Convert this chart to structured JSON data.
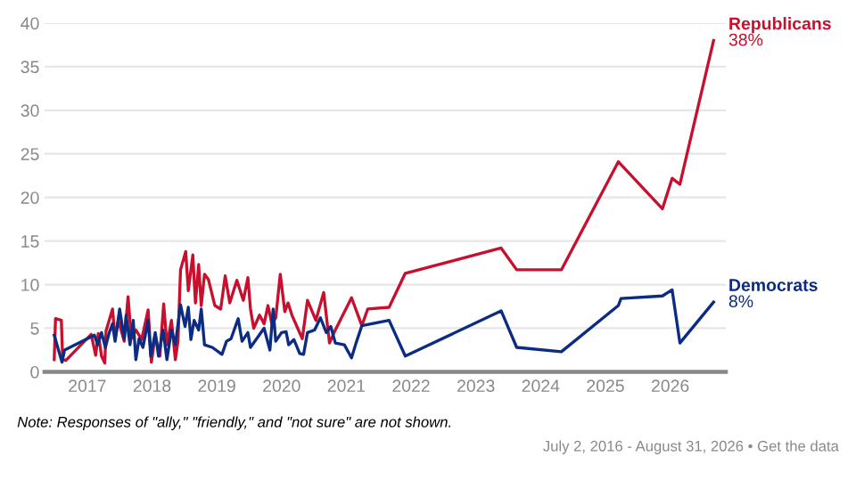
{
  "chart_data": {
    "type": "line",
    "series": [
      {
        "name": "Republicans",
        "color": "#c8102e",
        "x": [
          2016.49,
          2016.51,
          2016.6,
          2016.62,
          2016.67,
          2017.06,
          2017.13,
          2017.17,
          2017.22,
          2017.27,
          2017.29,
          2017.39,
          2017.43,
          2017.48,
          2017.57,
          2017.63,
          2017.68,
          2017.75,
          2017.84,
          2017.94,
          2017.99,
          2018.05,
          2018.12,
          2018.18,
          2018.23,
          2018.3,
          2018.36,
          2018.4,
          2018.44,
          2018.52,
          2018.56,
          2018.63,
          2018.67,
          2018.72,
          2018.76,
          2018.81,
          2018.87,
          2018.97,
          2019.06,
          2019.13,
          2019.2,
          2019.31,
          2019.41,
          2019.48,
          2019.52,
          2019.57,
          2019.66,
          2019.73,
          2019.79,
          2019.85,
          2019.91,
          2019.98,
          2020.05,
          2020.1,
          2020.16,
          2020.32,
          2020.4,
          2020.53,
          2020.65,
          2020.74,
          2020.83,
          2021.08,
          2021.24,
          2021.33,
          2021.66,
          2021.91,
          2023.39,
          2023.63,
          2024.32,
          2025.2,
          2025.88,
          2026.03,
          2026.15,
          2026.67
        ],
        "values": [
          1.4,
          6.1,
          5.9,
          1.4,
          1.3,
          4.3,
          1.9,
          4.4,
          1.8,
          1.0,
          4.7,
          7.2,
          3.8,
          5.9,
          3.5,
          8.6,
          3.8,
          4.8,
          3.7,
          7.1,
          1.1,
          4.2,
          1.8,
          7.8,
          3.1,
          5.9,
          1.4,
          3.5,
          11.7,
          13.8,
          9.3,
          13.4,
          7.9,
          12.3,
          7.6,
          11.2,
          10.6,
          7.6,
          7.2,
          11.0,
          7.9,
          10.5,
          8.2,
          10.8,
          7.2,
          5.0,
          6.5,
          5.5,
          7.6,
          5.5,
          6.2,
          11.2,
          6.9,
          7.9,
          6.5,
          3.8,
          8.2,
          5.9,
          9.1,
          3.3,
          4.8,
          8.5,
          5.3,
          7.2,
          7.4,
          11.3,
          14.2,
          11.7,
          11.7,
          24.1,
          18.7,
          22.2,
          21.5,
          38
        ]
      },
      {
        "name": "Democrats",
        "color": "#0c2c84",
        "x": [
          2016.49,
          2016.61,
          2016.65,
          2017.11,
          2017.16,
          2017.22,
          2017.28,
          2017.34,
          2017.39,
          2017.43,
          2017.5,
          2017.57,
          2017.6,
          2017.66,
          2017.71,
          2017.75,
          2017.8,
          2017.86,
          2017.94,
          2017.98,
          2018.05,
          2018.1,
          2018.17,
          2018.23,
          2018.3,
          2018.36,
          2018.44,
          2018.51,
          2018.56,
          2018.6,
          2018.65,
          2018.72,
          2018.76,
          2018.81,
          2018.93,
          2019.08,
          2019.15,
          2019.22,
          2019.33,
          2019.39,
          2019.48,
          2019.52,
          2019.73,
          2019.82,
          2019.87,
          2019.91,
          2020.0,
          2020.07,
          2020.11,
          2020.19,
          2020.28,
          2020.34,
          2020.4,
          2020.51,
          2020.6,
          2020.69,
          2020.76,
          2020.83,
          2020.97,
          2021.08,
          2021.15,
          2021.24,
          2021.66,
          2021.91,
          2023.39,
          2023.63,
          2024.32,
          2025.2,
          2025.24,
          2025.88,
          2026.03,
          2026.15,
          2026.67
        ],
        "values": [
          4.2,
          1.1,
          2.5,
          4.2,
          3.1,
          4.5,
          2.8,
          4.5,
          5.5,
          3.5,
          7.2,
          3.8,
          6.5,
          3.1,
          5.9,
          1.4,
          3.8,
          2.8,
          5.9,
          1.8,
          4.5,
          1.8,
          4.8,
          1.4,
          4.8,
          3.1,
          7.7,
          5.2,
          7.4,
          3.7,
          5.9,
          4.8,
          7.2,
          3.1,
          2.8,
          2.0,
          3.5,
          3.8,
          6.1,
          3.5,
          4.5,
          2.8,
          5.0,
          2.5,
          7.2,
          3.5,
          4.5,
          4.6,
          3.1,
          3.7,
          2.1,
          2.0,
          4.5,
          4.8,
          6.2,
          4.5,
          5.2,
          3.3,
          3.1,
          1.6,
          3.3,
          5.3,
          5.9,
          1.8,
          7.0,
          2.8,
          2.3,
          7.6,
          8.4,
          8.7,
          9.4,
          3.3,
          8
        ]
      }
    ],
    "xlim": [
      2016.34,
      2026.86
    ],
    "xticks": [
      2017,
      2018,
      2019,
      2020,
      2021,
      2022,
      2023,
      2024,
      2025,
      2026
    ],
    "ylim": [
      0,
      40
    ],
    "yticks": [
      0,
      5,
      10,
      15,
      20,
      25,
      30,
      35,
      40
    ],
    "grid": "y",
    "legend": false,
    "annotations": [
      {
        "text": "38%",
        "x": 2026.67,
        "y": 38
      },
      {
        "text": "8%",
        "x": 2026.67,
        "y": 8
      },
      "Note: Responses of \"ally,\" \"friendly,\" and \"not sure\" are not shown.",
      "July 2, 2016 - August 31, 2026 • Get the data"
    ]
  }
}
